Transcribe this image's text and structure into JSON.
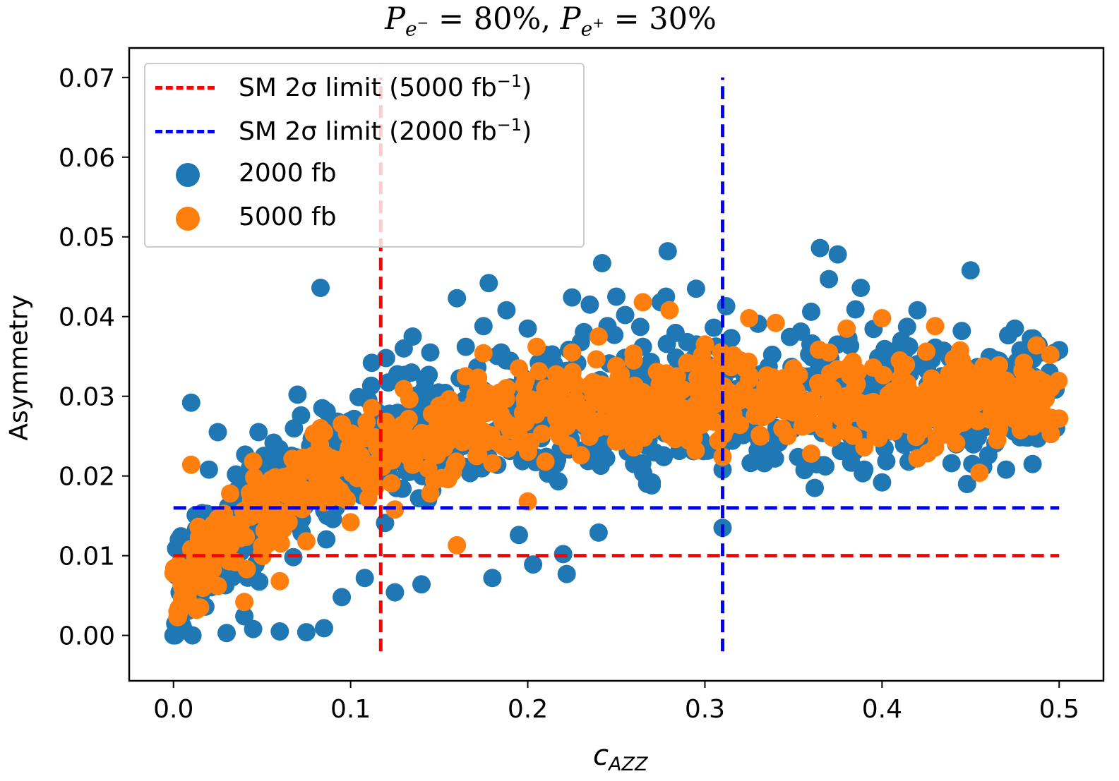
{
  "chart_data": {
    "type": "scatter",
    "title": "P_{e^-} = 80%,  P_{e^+} = 30%",
    "title_display": {
      "p1": "P",
      "s1": "e",
      "s1sup": "−",
      "eq1": " = 80%,  ",
      "p2": "P",
      "s2": "e",
      "s2sup": "+",
      "eq2": " = 30%"
    },
    "xlabel": "c_AZZ",
    "xlabel_display": {
      "main": "c",
      "sub": "AZZ"
    },
    "ylabel": "Asymmetry",
    "xlim": [
      -0.025,
      0.525
    ],
    "ylim": [
      -0.0057,
      0.0737
    ],
    "xticks": [
      0.0,
      0.1,
      0.2,
      0.3,
      0.4,
      0.5
    ],
    "xtick_labels": [
      "0.0",
      "0.1",
      "0.2",
      "0.3",
      "0.4",
      "0.5"
    ],
    "yticks": [
      0.0,
      0.01,
      0.02,
      0.03,
      0.04,
      0.05,
      0.06,
      0.07
    ],
    "ytick_labels": [
      "0.00",
      "0.01",
      "0.02",
      "0.03",
      "0.04",
      "0.05",
      "0.06",
      "0.07"
    ],
    "grid": false,
    "legend_position": "upper-left",
    "reference_lines": [
      {
        "name": "SM 2σ limit (5000 fb−1)",
        "label_main": "SM 2σ limit (5000 fb",
        "label_sup": "−1",
        "label_end": ")",
        "color": "#ff0000",
        "orientation": "horizontal",
        "value": 0.01,
        "x_range": [
          0.0,
          0.5
        ]
      },
      {
        "name": "SM 2σ limit (5000 fb−1)",
        "color": "#ff0000",
        "orientation": "vertical",
        "value": 0.117,
        "y_range": [
          -0.002,
          0.07
        ]
      },
      {
        "name": "SM 2σ limit (2000 fb−1)",
        "label_main": "SM 2σ limit (2000 fb",
        "label_sup": "−1",
        "label_end": ")",
        "color": "#0000ff",
        "orientation": "horizontal",
        "value": 0.016,
        "x_range": [
          0.0,
          0.5
        ]
      },
      {
        "name": "SM 2σ limit (2000 fb−1)",
        "color": "#0000ff",
        "orientation": "vertical",
        "value": 0.31,
        "y_range": [
          -0.002,
          0.07
        ]
      }
    ],
    "series": [
      {
        "name": "2000 fb",
        "color": "#1f77b4",
        "points": [
          [
            0.0,
            0.0
          ],
          [
            0.005,
            0.0012
          ],
          [
            0.01,
            0.0292
          ],
          [
            0.003,
            0.012
          ],
          [
            0.008,
            0.0048
          ],
          [
            0.012,
            0.0122
          ],
          [
            0.015,
            0.0058
          ],
          [
            0.018,
            0.0036
          ],
          [
            0.02,
            0.0208
          ],
          [
            0.025,
            0.0255
          ],
          [
            0.028,
            0.0072
          ],
          [
            0.03,
            0.0003
          ],
          [
            0.035,
            0.0138
          ],
          [
            0.038,
            0.0168
          ],
          [
            0.04,
            0.0024
          ],
          [
            0.045,
            0.0008
          ],
          [
            0.048,
            0.0255
          ],
          [
            0.05,
            0.0112
          ],
          [
            0.055,
            0.0188
          ],
          [
            0.06,
            0.0005
          ],
          [
            0.065,
            0.0215
          ],
          [
            0.07,
            0.0302
          ],
          [
            0.072,
            0.0276
          ],
          [
            0.075,
            0.0004
          ],
          [
            0.08,
            0.0225
          ],
          [
            0.083,
            0.0436
          ],
          [
            0.084,
            0.0285
          ],
          [
            0.085,
            0.0009
          ],
          [
            0.09,
            0.0146
          ],
          [
            0.095,
            0.0048
          ],
          [
            0.1,
            0.0226
          ],
          [
            0.105,
            0.0257
          ],
          [
            0.108,
            0.0072
          ],
          [
            0.11,
            0.0295
          ],
          [
            0.112,
            0.0342
          ],
          [
            0.116,
            0.0211
          ],
          [
            0.12,
            0.0348
          ],
          [
            0.125,
            0.0054
          ],
          [
            0.13,
            0.036
          ],
          [
            0.132,
            0.0205
          ],
          [
            0.135,
            0.0375
          ],
          [
            0.14,
            0.0064
          ],
          [
            0.145,
            0.0355
          ],
          [
            0.15,
            0.0301
          ],
          [
            0.155,
            0.0236
          ],
          [
            0.16,
            0.0423
          ],
          [
            0.165,
            0.0362
          ],
          [
            0.17,
            0.0271
          ],
          [
            0.175,
            0.0388
          ],
          [
            0.178,
            0.0442
          ],
          [
            0.18,
            0.0072
          ],
          [
            0.185,
            0.0355
          ],
          [
            0.188,
            0.0408
          ],
          [
            0.19,
            0.0311
          ],
          [
            0.195,
            0.0126
          ],
          [
            0.2,
            0.0385
          ],
          [
            0.203,
            0.0089
          ],
          [
            0.21,
            0.0352
          ],
          [
            0.215,
            0.0302
          ],
          [
            0.22,
            0.0102
          ],
          [
            0.222,
            0.0077
          ],
          [
            0.225,
            0.0424
          ],
          [
            0.23,
            0.0368
          ],
          [
            0.235,
            0.0415
          ],
          [
            0.24,
            0.0129
          ],
          [
            0.242,
            0.0467
          ],
          [
            0.245,
            0.0388
          ],
          [
            0.25,
            0.0425
          ],
          [
            0.255,
            0.0402
          ],
          [
            0.26,
            0.0215
          ],
          [
            0.265,
            0.0362
          ],
          [
            0.27,
            0.0192
          ],
          [
            0.275,
            0.0418
          ],
          [
            0.278,
            0.0425
          ],
          [
            0.279,
            0.0482
          ],
          [
            0.285,
            0.0245
          ],
          [
            0.29,
            0.0368
          ],
          [
            0.295,
            0.0435
          ],
          [
            0.3,
            0.0311
          ],
          [
            0.305,
            0.0386
          ],
          [
            0.31,
            0.0135
          ],
          [
            0.31,
            0.0208
          ],
          [
            0.312,
            0.0413
          ],
          [
            0.318,
            0.0253
          ],
          [
            0.325,
            0.0327
          ],
          [
            0.33,
            0.0391
          ],
          [
            0.338,
            0.0352
          ],
          [
            0.345,
            0.0282
          ],
          [
            0.35,
            0.0262
          ],
          [
            0.355,
            0.0296
          ],
          [
            0.36,
            0.0406
          ],
          [
            0.362,
            0.0185
          ],
          [
            0.365,
            0.0486
          ],
          [
            0.368,
            0.0212
          ],
          [
            0.37,
            0.0447
          ],
          [
            0.375,
            0.0478
          ],
          [
            0.38,
            0.0262
          ],
          [
            0.385,
            0.0409
          ],
          [
            0.388,
            0.0436
          ],
          [
            0.39,
            0.0208
          ],
          [
            0.395,
            0.0312
          ],
          [
            0.4,
            0.0192
          ],
          [
            0.405,
            0.0256
          ],
          [
            0.41,
            0.0362
          ],
          [
            0.415,
            0.0218
          ],
          [
            0.42,
            0.0408
          ],
          [
            0.425,
            0.0235
          ],
          [
            0.43,
            0.0361
          ],
          [
            0.435,
            0.0298
          ],
          [
            0.44,
            0.0255
          ],
          [
            0.445,
            0.0382
          ],
          [
            0.448,
            0.019
          ],
          [
            0.45,
            0.0458
          ],
          [
            0.455,
            0.0318
          ],
          [
            0.46,
            0.0226
          ],
          [
            0.465,
            0.0345
          ],
          [
            0.47,
            0.0208
          ],
          [
            0.475,
            0.0385
          ],
          [
            0.48,
            0.0301
          ],
          [
            0.485,
            0.0215
          ],
          [
            0.49,
            0.0355
          ],
          [
            0.495,
            0.0265
          ],
          [
            0.5,
            0.0358
          ]
        ]
      },
      {
        "name": "5000 fb",
        "color": "#ff7f0e",
        "points": [
          [
            0.0,
            0.0078
          ],
          [
            0.003,
            0.0028
          ],
          [
            0.008,
            0.0052
          ],
          [
            0.01,
            0.0214
          ],
          [
            0.012,
            0.0088
          ],
          [
            0.015,
            0.0035
          ],
          [
            0.02,
            0.0112
          ],
          [
            0.025,
            0.0062
          ],
          [
            0.03,
            0.0136
          ],
          [
            0.032,
            0.0178
          ],
          [
            0.035,
            0.0092
          ],
          [
            0.04,
            0.0042
          ],
          [
            0.045,
            0.0218
          ],
          [
            0.048,
            0.0186
          ],
          [
            0.05,
            0.0112
          ],
          [
            0.055,
            0.0195
          ],
          [
            0.06,
            0.0068
          ],
          [
            0.065,
            0.0142
          ],
          [
            0.07,
            0.0196
          ],
          [
            0.075,
            0.0118
          ],
          [
            0.08,
            0.0208
          ],
          [
            0.085,
            0.0255
          ],
          [
            0.09,
            0.0189
          ],
          [
            0.095,
            0.0265
          ],
          [
            0.1,
            0.0142
          ],
          [
            0.105,
            0.0218
          ],
          [
            0.11,
            0.0172
          ],
          [
            0.115,
            0.0236
          ],
          [
            0.12,
            0.0268
          ],
          [
            0.125,
            0.0158
          ],
          [
            0.13,
            0.0309
          ],
          [
            0.135,
            0.0214
          ],
          [
            0.14,
            0.0247
          ],
          [
            0.145,
            0.0178
          ],
          [
            0.15,
            0.0288
          ],
          [
            0.155,
            0.0196
          ],
          [
            0.16,
            0.0113
          ],
          [
            0.165,
            0.0325
          ],
          [
            0.17,
            0.0242
          ],
          [
            0.175,
            0.0354
          ],
          [
            0.18,
            0.0216
          ],
          [
            0.185,
            0.0298
          ],
          [
            0.19,
            0.0262
          ],
          [
            0.195,
            0.0335
          ],
          [
            0.2,
            0.0168
          ],
          [
            0.205,
            0.0362
          ],
          [
            0.21,
            0.0218
          ],
          [
            0.215,
            0.0296
          ],
          [
            0.22,
            0.0272
          ],
          [
            0.225,
            0.0355
          ],
          [
            0.23,
            0.0226
          ],
          [
            0.235,
            0.0312
          ],
          [
            0.24,
            0.0375
          ],
          [
            0.245,
            0.0262
          ],
          [
            0.25,
            0.0338
          ],
          [
            0.255,
            0.0285
          ],
          [
            0.26,
            0.0311
          ],
          [
            0.265,
            0.0418
          ],
          [
            0.27,
            0.0258
          ],
          [
            0.275,
            0.0319
          ],
          [
            0.28,
            0.0408
          ],
          [
            0.285,
            0.0278
          ],
          [
            0.29,
            0.0342
          ],
          [
            0.295,
            0.0285
          ],
          [
            0.3,
            0.0365
          ],
          [
            0.305,
            0.0268
          ],
          [
            0.31,
            0.0224
          ],
          [
            0.315,
            0.0302
          ],
          [
            0.32,
            0.0345
          ],
          [
            0.325,
            0.0398
          ],
          [
            0.33,
            0.0278
          ],
          [
            0.335,
            0.0326
          ],
          [
            0.34,
            0.0392
          ],
          [
            0.345,
            0.0288
          ],
          [
            0.35,
            0.0335
          ],
          [
            0.355,
            0.0262
          ],
          [
            0.36,
            0.0228
          ],
          [
            0.365,
            0.0312
          ],
          [
            0.37,
            0.0355
          ],
          [
            0.375,
            0.0278
          ],
          [
            0.38,
            0.0385
          ],
          [
            0.385,
            0.0312
          ],
          [
            0.39,
            0.0236
          ],
          [
            0.395,
            0.0336
          ],
          [
            0.4,
            0.0398
          ],
          [
            0.405,
            0.0282
          ],
          [
            0.41,
            0.0345
          ],
          [
            0.415,
            0.0308
          ],
          [
            0.42,
            0.0222
          ],
          [
            0.425,
            0.0356
          ],
          [
            0.43,
            0.0388
          ],
          [
            0.435,
            0.0268
          ],
          [
            0.44,
            0.0312
          ],
          [
            0.445,
            0.0345
          ],
          [
            0.45,
            0.0282
          ],
          [
            0.455,
            0.0204
          ],
          [
            0.46,
            0.0328
          ],
          [
            0.465,
            0.0245
          ],
          [
            0.47,
            0.0316
          ],
          [
            0.475,
            0.0282
          ],
          [
            0.48,
            0.0342
          ],
          [
            0.485,
            0.0262
          ],
          [
            0.49,
            0.0308
          ],
          [
            0.495,
            0.0352
          ],
          [
            0.5,
            0.0272
          ]
        ]
      }
    ]
  }
}
